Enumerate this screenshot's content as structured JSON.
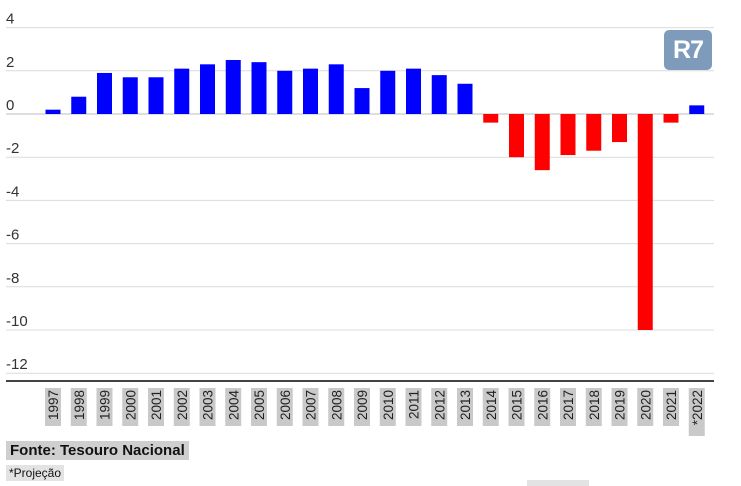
{
  "logo": {
    "text": "R7",
    "color": "#7f9bbb"
  },
  "footer": {
    "source": "Fonte: Tesouro Nacional",
    "note": "*Projeção"
  },
  "chart_data": {
    "type": "bar",
    "title": "",
    "xlabel": "",
    "ylabel": "",
    "ylim": [
      -13,
      4
    ],
    "yticks": [
      4,
      2,
      0,
      -2,
      -4,
      -6,
      -8,
      -10,
      -12
    ],
    "grid": true,
    "legend": "none",
    "colors": {
      "positive": "#0000ff",
      "negative": "#ff0000"
    },
    "categories": [
      "1997",
      "1998",
      "1999",
      "2000",
      "2001",
      "2002",
      "2003",
      "2004",
      "2005",
      "2006",
      "2007",
      "2008",
      "2009",
      "2010",
      "2011",
      "2012",
      "2013",
      "2014",
      "2015",
      "2016",
      "2017",
      "2018",
      "2019",
      "2020",
      "2021",
      "*2022"
    ],
    "values": [
      0.2,
      0.8,
      1.9,
      1.7,
      1.7,
      2.1,
      2.3,
      2.5,
      2.4,
      2.0,
      2.1,
      2.3,
      1.2,
      2.0,
      2.1,
      1.8,
      1.4,
      -0.4,
      -2.0,
      -2.6,
      -1.9,
      -1.7,
      -1.3,
      -10.0,
      -0.4,
      0.4
    ]
  }
}
